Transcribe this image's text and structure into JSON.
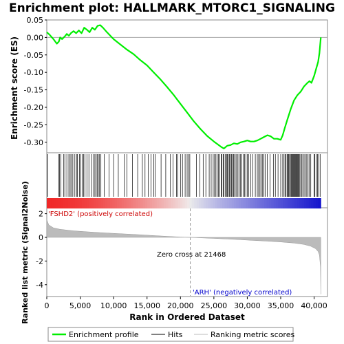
{
  "chart_data": {
    "type": "line",
    "title": "Enrichment plot: HALLMARK_MTORC1_SIGNALING",
    "top_panel": {
      "ylabel": "Enrichment score (ES)",
      "ylim": [
        -0.33,
        0.05
      ],
      "yticks": [
        0.05,
        0.0,
        -0.05,
        -0.1,
        -0.15,
        -0.2,
        -0.25,
        -0.3
      ],
      "ytick_labels": [
        "0.05",
        "0.00",
        "-0.05",
        "-0.10",
        "-0.15",
        "-0.20",
        "-0.25",
        "-0.30"
      ],
      "series": [
        {
          "name": "Enrichment profile",
          "color": "#00ee00",
          "x": [
            0,
            400,
            1000,
            1500,
            1800,
            2000,
            2300,
            2700,
            3000,
            3300,
            3600,
            4000,
            4400,
            4800,
            5200,
            5600,
            6000,
            6400,
            6800,
            7200,
            7600,
            8000,
            8400,
            9000,
            10000,
            11000,
            12000,
            13000,
            14000,
            15000,
            16000,
            17000,
            18000,
            19000,
            20000,
            21000,
            22000,
            23000,
            24000,
            25000,
            25500,
            26000,
            26500,
            27000,
            27500,
            28000,
            28500,
            29000,
            29500,
            30000,
            30500,
            31000,
            31500,
            32000,
            32500,
            33000,
            33500,
            34000,
            34500,
            35000,
            35300,
            35600,
            36000,
            36500,
            37000,
            37500,
            38000,
            38500,
            39000,
            39300,
            39600,
            40000,
            40300,
            40600,
            40800,
            41000
          ],
          "y": [
            0.015,
            0.008,
            -0.005,
            -0.018,
            -0.012,
            0.0,
            -0.005,
            0.003,
            0.01,
            0.005,
            0.012,
            0.018,
            0.012,
            0.02,
            0.012,
            0.028,
            0.022,
            0.015,
            0.028,
            0.022,
            0.033,
            0.035,
            0.028,
            0.015,
            -0.005,
            -0.02,
            -0.035,
            -0.048,
            -0.065,
            -0.08,
            -0.1,
            -0.12,
            -0.142,
            -0.165,
            -0.19,
            -0.215,
            -0.24,
            -0.262,
            -0.282,
            -0.298,
            -0.305,
            -0.312,
            -0.318,
            -0.31,
            -0.308,
            -0.303,
            -0.305,
            -0.3,
            -0.298,
            -0.295,
            -0.298,
            -0.298,
            -0.295,
            -0.29,
            -0.285,
            -0.28,
            -0.283,
            -0.29,
            -0.29,
            -0.293,
            -0.28,
            -0.26,
            -0.235,
            -0.205,
            -0.18,
            -0.165,
            -0.155,
            -0.14,
            -0.13,
            -0.125,
            -0.13,
            -0.11,
            -0.09,
            -0.07,
            -0.045,
            0.0
          ]
        }
      ]
    },
    "hits_panel": {
      "legend_name": "Hits",
      "hit_ranks": [
        150,
        1800,
        1900,
        2100,
        2500,
        2700,
        3000,
        3300,
        3500,
        3700,
        3900,
        4200,
        4500,
        4600,
        4900,
        5100,
        5300,
        5500,
        5700,
        6000,
        6300,
        6700,
        7000,
        7200,
        7400,
        7600,
        7700,
        7900,
        8100,
        8600,
        9300,
        10000,
        10700,
        11600,
        12000,
        12800,
        13600,
        14300,
        14700,
        15200,
        15600,
        16000,
        16200,
        17100,
        17800,
        18500,
        18900,
        19400,
        19600,
        20000,
        20300,
        20700,
        21000,
        21200,
        21400,
        22400,
        22900,
        23400,
        23800,
        24300,
        24600,
        24900,
        25100,
        25300,
        25500,
        25700,
        25900,
        26100,
        26200,
        26400,
        26500,
        26700,
        26900,
        27000,
        27100,
        27300,
        27400,
        27600,
        27700,
        27900,
        28000,
        28200,
        28400,
        28600,
        28800,
        29000,
        29200,
        29400,
        29600,
        29800,
        30000,
        30200,
        30500,
        30800,
        31200,
        31500,
        31700,
        31900,
        32100,
        32300,
        32500,
        32700,
        33000,
        33400,
        33900,
        34200,
        34600,
        35000,
        35300,
        35500,
        35700,
        35800,
        36000,
        36100,
        36200,
        36300,
        36500,
        36600,
        36700,
        36800,
        36900,
        37000,
        37100,
        37200,
        37300,
        37400,
        37500,
        37600,
        37700,
        37800,
        38000,
        38100,
        38300,
        38500,
        38700,
        38900,
        39100,
        39300,
        39500,
        40000,
        40100,
        40300,
        40500,
        40700,
        40900
      ]
    },
    "rank_panel": {
      "ylabel": "Ranked list metric (Signal2Noise)",
      "ylim": [
        -5,
        2.5
      ],
      "yticks": [
        2,
        0,
        -2,
        -4
      ],
      "ytick_labels": [
        "2",
        "0",
        "-2",
        "-4"
      ],
      "legend_name": "Ranking metric scores",
      "x": [
        0,
        300,
        1000,
        2000,
        4000,
        6000,
        8000,
        10000,
        12000,
        14000,
        16000,
        18000,
        20000,
        21468,
        23000,
        25000,
        27000,
        29000,
        31000,
        33000,
        35000,
        37000,
        38500,
        39500,
        40200,
        40600,
        40800,
        40950,
        41000
      ],
      "y": [
        1.5,
        1.05,
        0.8,
        0.68,
        0.55,
        0.47,
        0.4,
        0.34,
        0.28,
        0.22,
        0.15,
        0.09,
        0.03,
        0.0,
        -0.04,
        -0.09,
        -0.14,
        -0.2,
        -0.26,
        -0.32,
        -0.39,
        -0.48,
        -0.6,
        -0.75,
        -0.95,
        -1.2,
        -1.5,
        -2.5,
        -4.8
      ],
      "zero_cross_label": "Zero cross at 21468",
      "zero_cross_rank": 21468,
      "pos_label": "'FSHD2' (positively correlated)",
      "neg_label": "'ARH' (negatively correlated)"
    },
    "xlabel": "Rank in Ordered Dataset",
    "xlim": [
      0,
      42000
    ],
    "xticks": [
      0,
      5000,
      10000,
      15000,
      20000,
      25000,
      30000,
      35000,
      40000
    ],
    "xtick_labels": [
      "0",
      "5,000",
      "10,000",
      "15,000",
      "20,000",
      "25,000",
      "30,000",
      "35,000",
      "40,000"
    ],
    "legend": {
      "placement": "bottom",
      "entries": [
        "Enrichment profile",
        "Hits",
        "Ranking metric scores"
      ]
    },
    "colors": {
      "profile": "#00ee00",
      "hits": "#000000",
      "metric_fill": "#bbbbbb",
      "pos": "#ee2222",
      "neg": "#2222cc"
    }
  }
}
